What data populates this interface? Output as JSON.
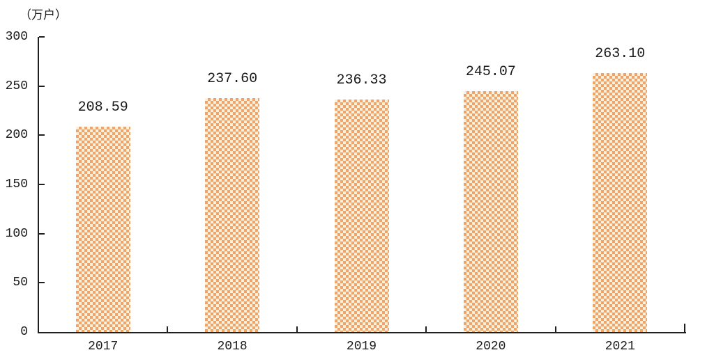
{
  "chart_data": {
    "type": "bar",
    "title": "",
    "ylabel": "（万户）",
    "xlabel": "",
    "categories": [
      "2017",
      "2018",
      "2019",
      "2020",
      "2021"
    ],
    "values": [
      208.59,
      237.6,
      236.33,
      245.07,
      263.1
    ],
    "value_labels": [
      "208.59",
      "237.60",
      "236.33",
      "245.07",
      "263.10"
    ],
    "ylim": [
      0,
      300
    ],
    "yticks": [
      0,
      50,
      100,
      150,
      200,
      250,
      300
    ],
    "grid": false,
    "legend_position": "none",
    "bar_pattern": "checkerboard",
    "colors": {
      "bar_orange": "#f0a46b",
      "bar_cream": "#fbf1da",
      "axis": "#1f1f1f",
      "text": "#1a1a1a",
      "background": "#ffffff"
    }
  }
}
